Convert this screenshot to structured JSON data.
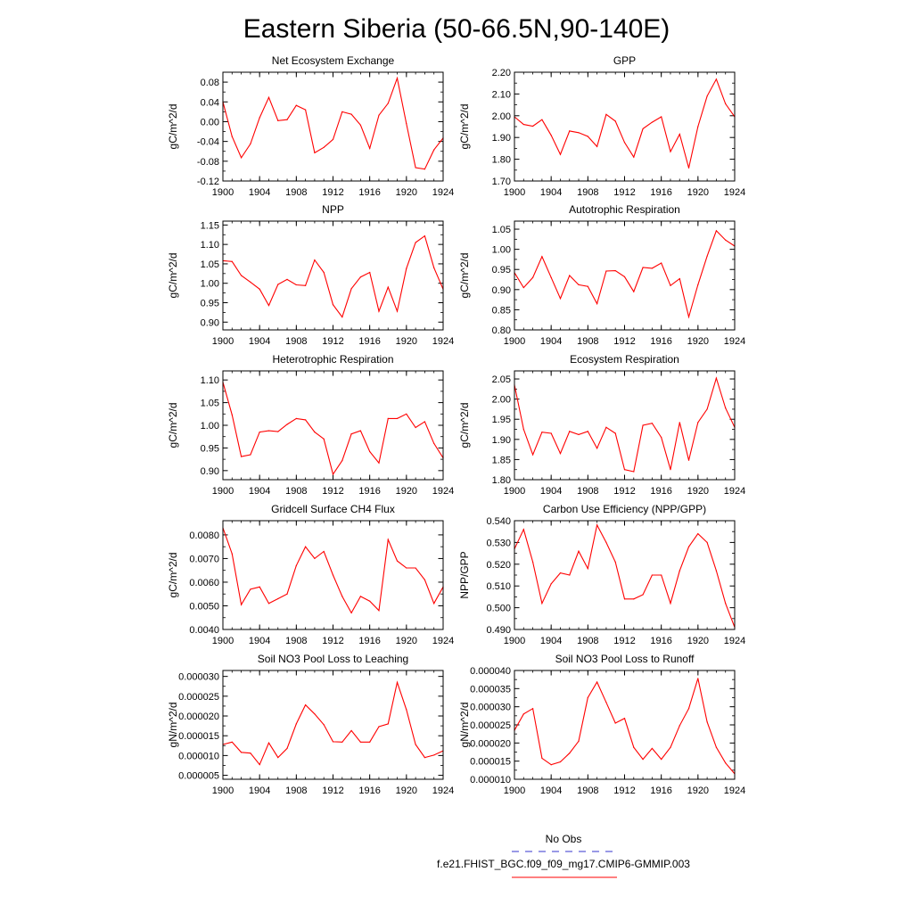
{
  "figure": {
    "title": "Eastern Siberia (50-66.5N,90-140E)",
    "legend": [
      {
        "label": "No Obs",
        "color": "#3333cc",
        "dash": true
      },
      {
        "label": "f.e21.FHIST_BGC.f09_f09_mg17.CMIP6-GMMIP.003",
        "color": "#ff0000",
        "dash": false
      }
    ]
  },
  "chart_data": [
    {
      "type": "line",
      "title": "Net Ecosystem Exchange",
      "ylabel": "gC/m^2/d",
      "xlim": [
        1900,
        1924
      ],
      "xticks": [
        1900,
        1904,
        1908,
        1912,
        1916,
        1920,
        1924
      ],
      "ylim": [
        -0.12,
        0.1
      ],
      "yticks": [
        -0.12,
        -0.08,
        -0.04,
        0.0,
        0.04,
        0.08
      ],
      "ytick_labels": [
        "-0.12",
        "-0.08",
        "-0.04",
        "0.00",
        "0.04",
        "0.08"
      ],
      "x": [
        1900,
        1901,
        1902,
        1903,
        1904,
        1905,
        1906,
        1907,
        1908,
        1909,
        1910,
        1911,
        1912,
        1913,
        1914,
        1915,
        1916,
        1917,
        1918,
        1919,
        1920,
        1921,
        1922,
        1923,
        1924
      ],
      "series": [
        {
          "color": "#ff0000",
          "values": [
            0.04,
            -0.03,
            -0.073,
            -0.045,
            0.008,
            0.049,
            0.002,
            0.004,
            0.033,
            0.024,
            -0.063,
            -0.052,
            -0.036,
            0.02,
            0.015,
            -0.007,
            -0.054,
            0.013,
            0.037,
            0.088,
            -0.004,
            -0.093,
            -0.096,
            -0.057,
            -0.033
          ]
        }
      ]
    },
    {
      "type": "line",
      "title": "GPP",
      "ylabel": "gC/m^2/d",
      "xlim": [
        1900,
        1924
      ],
      "xticks": [
        1900,
        1904,
        1908,
        1912,
        1916,
        1920,
        1924
      ],
      "ylim": [
        1.7,
        2.2
      ],
      "yticks": [
        1.7,
        1.8,
        1.9,
        2.0,
        2.1,
        2.2
      ],
      "ytick_labels": [
        "1.70",
        "1.80",
        "1.90",
        "2.00",
        "2.10",
        "2.20"
      ],
      "x": [
        1900,
        1901,
        1902,
        1903,
        1904,
        1905,
        1906,
        1907,
        1908,
        1909,
        1910,
        1911,
        1912,
        1913,
        1914,
        1915,
        1916,
        1917,
        1918,
        1919,
        1920,
        1921,
        1922,
        1923,
        1924
      ],
      "series": [
        {
          "color": "#ff0000",
          "values": [
            1.995,
            1.96,
            1.952,
            1.982,
            1.91,
            1.822,
            1.93,
            1.922,
            1.905,
            1.858,
            2.006,
            1.975,
            1.877,
            1.81,
            1.94,
            1.97,
            1.995,
            1.835,
            1.915,
            1.76,
            1.95,
            2.09,
            2.168,
            2.055,
            1.995
          ]
        }
      ]
    },
    {
      "type": "line",
      "title": "NPP",
      "ylabel": "gC/m^2/d",
      "xlim": [
        1900,
        1924
      ],
      "xticks": [
        1900,
        1904,
        1908,
        1912,
        1916,
        1920,
        1924
      ],
      "ylim": [
        0.88,
        1.16
      ],
      "yticks": [
        0.9,
        0.95,
        1.0,
        1.05,
        1.1,
        1.15
      ],
      "ytick_labels": [
        "0.90",
        "0.95",
        "1.00",
        "1.05",
        "1.10",
        "1.15"
      ],
      "x": [
        1900,
        1901,
        1902,
        1903,
        1904,
        1905,
        1906,
        1907,
        1908,
        1909,
        1910,
        1911,
        1912,
        1913,
        1914,
        1915,
        1916,
        1917,
        1918,
        1919,
        1920,
        1921,
        1922,
        1923,
        1924
      ],
      "series": [
        {
          "color": "#ff0000",
          "values": [
            1.058,
            1.056,
            1.02,
            1.003,
            0.985,
            0.943,
            0.997,
            1.01,
            0.996,
            0.994,
            1.06,
            1.028,
            0.945,
            0.913,
            0.986,
            1.016,
            1.028,
            0.928,
            0.99,
            0.928,
            1.038,
            1.105,
            1.122,
            1.04,
            0.985
          ]
        }
      ]
    },
    {
      "type": "line",
      "title": "Autotrophic Respiration",
      "ylabel": "gC/m^2/d",
      "xlim": [
        1900,
        1924
      ],
      "xticks": [
        1900,
        1904,
        1908,
        1912,
        1916,
        1920,
        1924
      ],
      "ylim": [
        0.8,
        1.07
      ],
      "yticks": [
        0.8,
        0.85,
        0.9,
        0.95,
        1.0,
        1.05
      ],
      "ytick_labels": [
        "0.80",
        "0.85",
        "0.90",
        "0.95",
        "1.00",
        "1.05"
      ],
      "x": [
        1900,
        1901,
        1902,
        1903,
        1904,
        1905,
        1906,
        1907,
        1908,
        1909,
        1910,
        1911,
        1912,
        1913,
        1914,
        1915,
        1916,
        1917,
        1918,
        1919,
        1920,
        1921,
        1922,
        1923,
        1924
      ],
      "series": [
        {
          "color": "#ff0000",
          "values": [
            0.942,
            0.905,
            0.93,
            0.982,
            0.93,
            0.878,
            0.935,
            0.912,
            0.908,
            0.865,
            0.946,
            0.947,
            0.932,
            0.895,
            0.955,
            0.953,
            0.966,
            0.91,
            0.927,
            0.832,
            0.912,
            0.983,
            1.046,
            1.023,
            1.008
          ]
        }
      ]
    },
    {
      "type": "line",
      "title": "Heterotrophic Respiration",
      "ylabel": "gC/m^2/d",
      "xlim": [
        1900,
        1924
      ],
      "xticks": [
        1900,
        1904,
        1908,
        1912,
        1916,
        1920,
        1924
      ],
      "ylim": [
        0.88,
        1.12
      ],
      "yticks": [
        0.9,
        0.95,
        1.0,
        1.05,
        1.1
      ],
      "ytick_labels": [
        "0.90",
        "0.95",
        "1.00",
        "1.05",
        "1.10"
      ],
      "x": [
        1900,
        1901,
        1902,
        1903,
        1904,
        1905,
        1906,
        1907,
        1908,
        1909,
        1910,
        1911,
        1912,
        1913,
        1914,
        1915,
        1916,
        1917,
        1918,
        1919,
        1920,
        1921,
        1922,
        1923,
        1924
      ],
      "series": [
        {
          "color": "#ff0000",
          "values": [
            1.095,
            1.023,
            0.931,
            0.935,
            0.985,
            0.988,
            0.986,
            1.002,
            1.015,
            1.012,
            0.985,
            0.97,
            0.892,
            0.922,
            0.981,
            0.988,
            0.942,
            0.917,
            1.015,
            1.015,
            1.025,
            0.995,
            1.008,
            0.96,
            0.928
          ]
        }
      ]
    },
    {
      "type": "line",
      "title": "Ecosystem Respiration",
      "ylabel": "gC/m^2/d",
      "xlim": [
        1900,
        1924
      ],
      "xticks": [
        1900,
        1904,
        1908,
        1912,
        1916,
        1920,
        1924
      ],
      "ylim": [
        1.8,
        2.07
      ],
      "yticks": [
        1.8,
        1.85,
        1.9,
        1.95,
        2.0,
        2.05
      ],
      "ytick_labels": [
        "1.80",
        "1.85",
        "1.90",
        "1.95",
        "2.00",
        "2.05"
      ],
      "x": [
        1900,
        1901,
        1902,
        1903,
        1904,
        1905,
        1906,
        1907,
        1908,
        1909,
        1910,
        1911,
        1912,
        1913,
        1914,
        1915,
        1916,
        1917,
        1918,
        1919,
        1920,
        1921,
        1922,
        1923,
        1924
      ],
      "series": [
        {
          "color": "#ff0000",
          "values": [
            2.035,
            1.925,
            1.862,
            1.918,
            1.915,
            1.865,
            1.92,
            1.912,
            1.92,
            1.878,
            1.93,
            1.915,
            1.825,
            1.82,
            1.935,
            1.94,
            1.905,
            1.825,
            1.942,
            1.848,
            1.942,
            1.975,
            2.052,
            1.978,
            1.93
          ]
        }
      ]
    },
    {
      "type": "line",
      "title": "Gridcell Surface CH4 Flux",
      "ylabel": "gC/m^2/d",
      "xlim": [
        1900,
        1924
      ],
      "xticks": [
        1900,
        1904,
        1908,
        1912,
        1916,
        1920,
        1924
      ],
      "ylim": [
        0.004,
        0.0086
      ],
      "yticks": [
        0.004,
        0.005,
        0.006,
        0.007,
        0.008
      ],
      "ytick_labels": [
        "0.0040",
        "0.0050",
        "0.0060",
        "0.0070",
        "0.0080"
      ],
      "x": [
        1900,
        1901,
        1902,
        1903,
        1904,
        1905,
        1906,
        1907,
        1908,
        1909,
        1910,
        1911,
        1912,
        1913,
        1914,
        1915,
        1916,
        1917,
        1918,
        1919,
        1920,
        1921,
        1922,
        1923,
        1924
      ],
      "series": [
        {
          "color": "#ff0000",
          "values": [
            0.0083,
            0.0072,
            0.00505,
            0.0057,
            0.0058,
            0.0051,
            0.0053,
            0.0055,
            0.0067,
            0.0075,
            0.007,
            0.0073,
            0.0063,
            0.0054,
            0.0047,
            0.0054,
            0.0052,
            0.0048,
            0.0078,
            0.0069,
            0.0066,
            0.0066,
            0.0061,
            0.0051,
            0.0058
          ]
        }
      ]
    },
    {
      "type": "line",
      "title": "Carbon Use Efficiency (NPP/GPP)",
      "ylabel": "NPP/GPP",
      "xlim": [
        1900,
        1924
      ],
      "xticks": [
        1900,
        1904,
        1908,
        1912,
        1916,
        1920,
        1924
      ],
      "ylim": [
        0.49,
        0.54
      ],
      "yticks": [
        0.49,
        0.5,
        0.51,
        0.52,
        0.53,
        0.54
      ],
      "ytick_labels": [
        "0.490",
        "0.500",
        "0.510",
        "0.520",
        "0.530",
        "0.540"
      ],
      "x": [
        1900,
        1901,
        1902,
        1903,
        1904,
        1905,
        1906,
        1907,
        1908,
        1909,
        1910,
        1911,
        1912,
        1913,
        1914,
        1915,
        1916,
        1917,
        1918,
        1919,
        1920,
        1921,
        1922,
        1923,
        1924
      ],
      "series": [
        {
          "color": "#ff0000",
          "values": [
            0.527,
            0.536,
            0.521,
            0.502,
            0.511,
            0.516,
            0.515,
            0.526,
            0.518,
            0.538,
            0.53,
            0.521,
            0.504,
            0.504,
            0.506,
            0.515,
            0.515,
            0.502,
            0.517,
            0.528,
            0.534,
            0.53,
            0.517,
            0.502,
            0.491
          ]
        }
      ]
    },
    {
      "type": "line",
      "title": "Soil NO3 Pool Loss to Leaching",
      "ylabel": "gN/m^2/d",
      "xlim": [
        1900,
        1924
      ],
      "xticks": [
        1900,
        1904,
        1908,
        1912,
        1916,
        1920,
        1924
      ],
      "ylim": [
        4e-06,
        3.15e-05
      ],
      "yticks": [
        5e-06,
        1e-05,
        1.5e-05,
        2e-05,
        2.5e-05,
        3e-05
      ],
      "ytick_labels": [
        "0.000005",
        "0.000010",
        "0.000015",
        "0.000020",
        "0.000025",
        "0.000030"
      ],
      "x": [
        1900,
        1901,
        1902,
        1903,
        1904,
        1905,
        1906,
        1907,
        1908,
        1909,
        1910,
        1911,
        1912,
        1913,
        1914,
        1915,
        1916,
        1917,
        1918,
        1919,
        1920,
        1921,
        1922,
        1923,
        1924
      ],
      "series": [
        {
          "color": "#ff0000",
          "values": [
            1.28e-05,
            1.34e-05,
            1.08e-05,
            1.06e-05,
            7.7e-06,
            1.32e-05,
            9.5e-06,
            1.18e-05,
            1.8e-05,
            2.28e-05,
            2.05e-05,
            1.78e-05,
            1.35e-05,
            1.34e-05,
            1.63e-05,
            1.34e-05,
            1.34e-05,
            1.73e-05,
            1.8e-05,
            2.85e-05,
            2.16e-05,
            1.28e-05,
            9.5e-06,
            1.01e-05,
            1.12e-05
          ]
        }
      ]
    },
    {
      "type": "line",
      "title": "Soil NO3 Pool Loss to Runoff",
      "ylabel": "gN/m^2/d",
      "xlim": [
        1900,
        1924
      ],
      "xticks": [
        1900,
        1904,
        1908,
        1912,
        1916,
        1920,
        1924
      ],
      "ylim": [
        1e-05,
        4e-05
      ],
      "yticks": [
        1e-05,
        1.5e-05,
        2e-05,
        2.5e-05,
        3e-05,
        3.5e-05,
        4e-05
      ],
      "ytick_labels": [
        "0.000010",
        "0.000015",
        "0.000020",
        "0.000025",
        "0.000030",
        "0.000035",
        "0.000040"
      ],
      "x": [
        1900,
        1901,
        1902,
        1903,
        1904,
        1905,
        1906,
        1907,
        1908,
        1909,
        1910,
        1911,
        1912,
        1913,
        1914,
        1915,
        1916,
        1917,
        1918,
        1919,
        1920,
        1921,
        1922,
        1923,
        1924
      ],
      "series": [
        {
          "color": "#ff0000",
          "values": [
            2.35e-05,
            2.8e-05,
            2.95e-05,
            1.58e-05,
            1.4e-05,
            1.48e-05,
            1.72e-05,
            2.05e-05,
            3.25e-05,
            3.68e-05,
            3.12e-05,
            2.55e-05,
            2.68e-05,
            1.88e-05,
            1.55e-05,
            1.85e-05,
            1.55e-05,
            1.88e-05,
            2.48e-05,
            2.95e-05,
            3.78e-05,
            2.58e-05,
            1.88e-05,
            1.45e-05,
            1.15e-05
          ]
        }
      ]
    }
  ]
}
